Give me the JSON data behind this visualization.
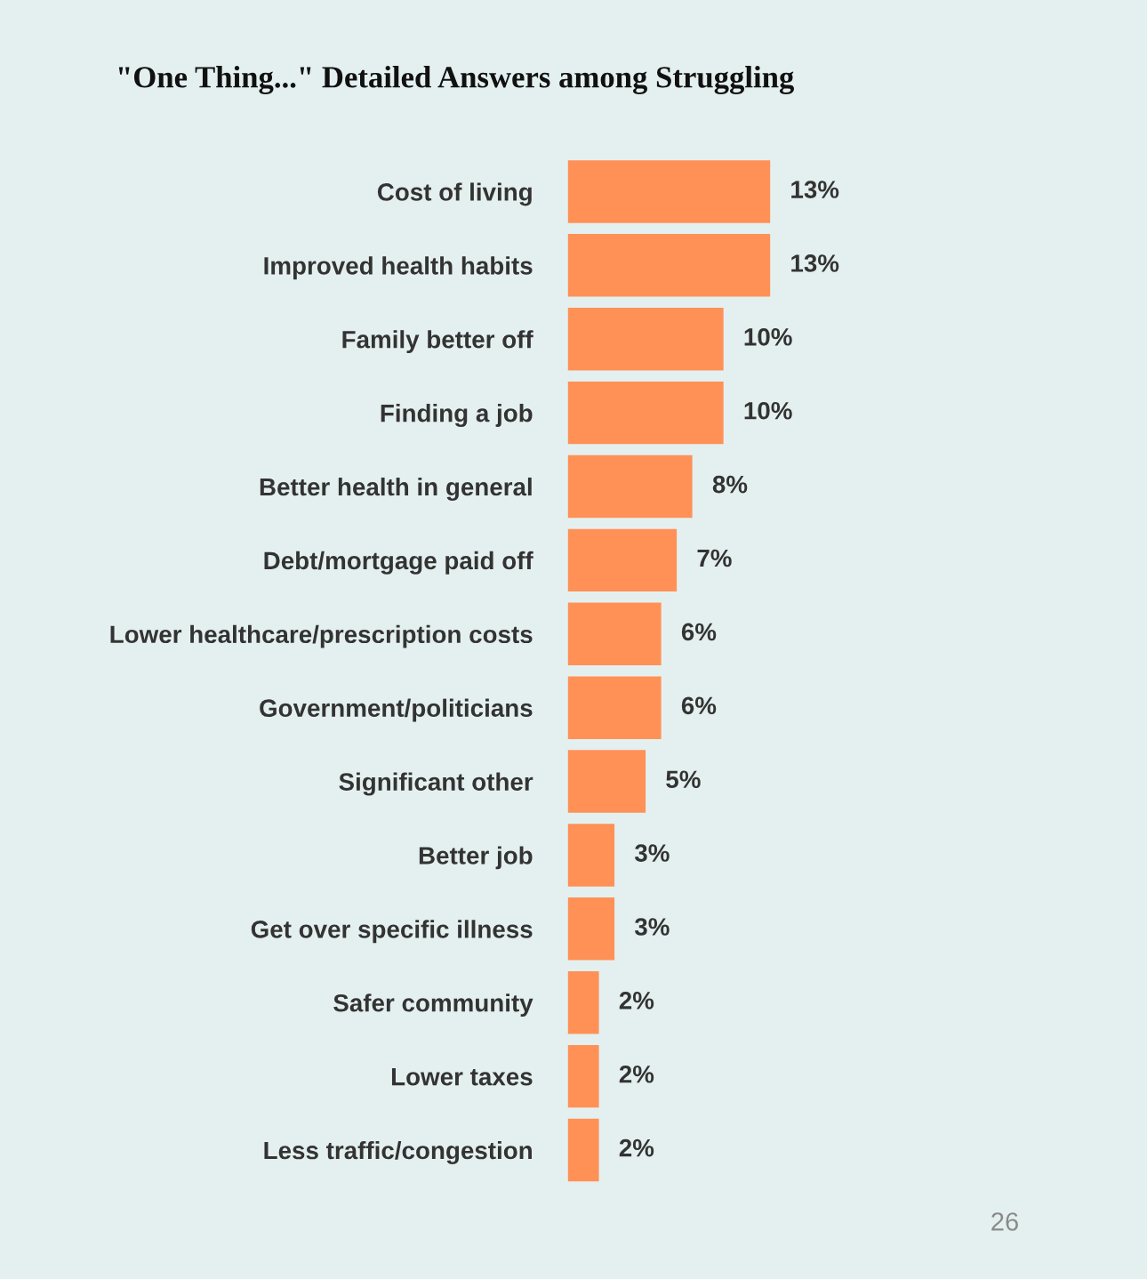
{
  "chart_data": {
    "type": "bar",
    "orientation": "horizontal",
    "title": "\"One Thing...\" Detailed Answers among Struggling",
    "categories": [
      "Cost of living",
      "Improved health habits",
      "Family better off",
      "Finding a job",
      "Better health in general",
      "Debt/mortgage paid off",
      "Lower healthcare/prescription costs",
      "Government/politicians",
      "Significant other",
      "Better job",
      "Get over specific illness",
      "Safer community",
      "Lower taxes",
      "Less traffic/congestion"
    ],
    "values": [
      13,
      13,
      10,
      10,
      8,
      7,
      6,
      6,
      5,
      3,
      3,
      2,
      2,
      2
    ],
    "value_labels": [
      "13%",
      "13%",
      "10%",
      "10%",
      "8%",
      "7%",
      "6%",
      "6%",
      "5%",
      "3%",
      "3%",
      "2%",
      "2%",
      "2%"
    ],
    "color": "#ff9157",
    "tick_labels": "y",
    "grid": false,
    "legend": false,
    "annotations": [
      "26"
    ]
  }
}
